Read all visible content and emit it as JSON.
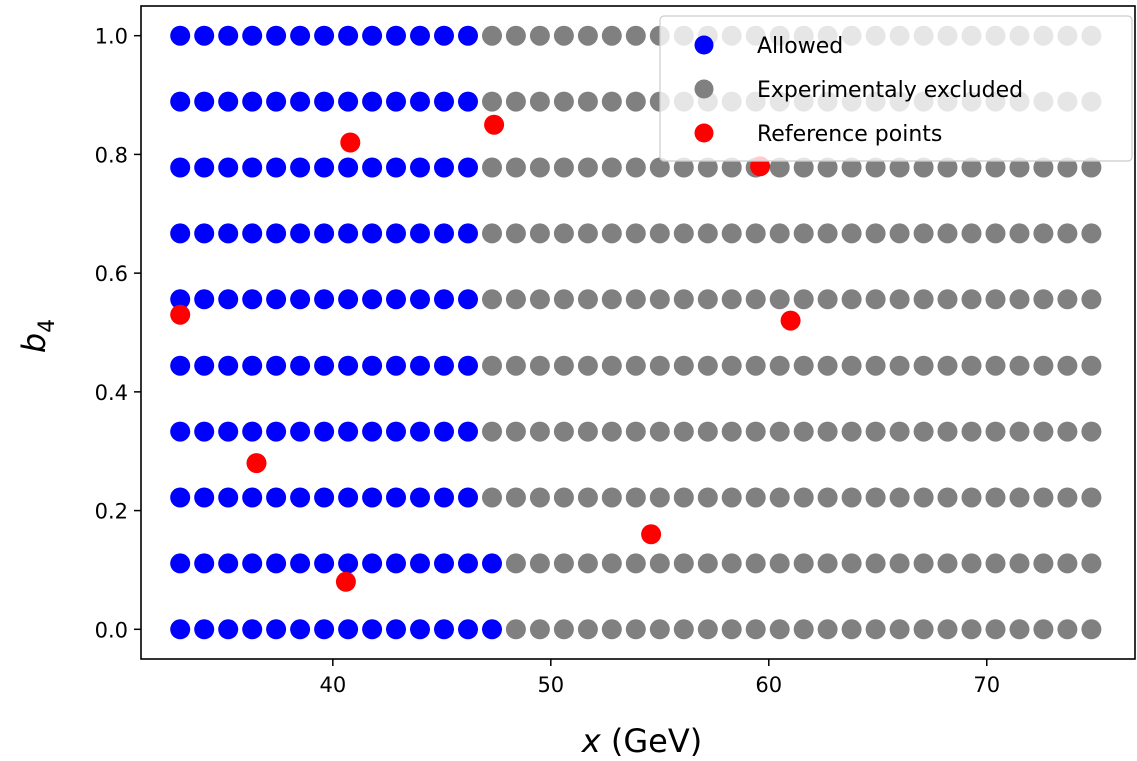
{
  "chart_data": {
    "type": "scatter",
    "xlabel_var": "x",
    "xlabel_unit": " (GeV)",
    "ylabel_var": "b",
    "ylabel_sub": "4",
    "xlim": [
      31.2,
      76.8
    ],
    "ylim": [
      -0.05,
      1.05
    ],
    "xticks": [
      40,
      50,
      60,
      70
    ],
    "yticks": [
      0.0,
      0.2,
      0.4,
      0.6,
      0.8,
      1.0
    ],
    "grid": false,
    "legend_position": "top-right",
    "grid_x": [
      33.0,
      34.1,
      35.2,
      36.3,
      37.4,
      38.5,
      39.6,
      40.7,
      41.8,
      42.9,
      44.0,
      45.1,
      46.2,
      47.3,
      48.4,
      49.5,
      50.6,
      51.7,
      52.8,
      53.9,
      55.0,
      56.1,
      57.2,
      58.3,
      59.4,
      60.5,
      61.6,
      62.7,
      63.8,
      64.9,
      66.0,
      67.1,
      68.2,
      69.3,
      70.4,
      71.5,
      72.6,
      73.7,
      74.8
    ],
    "grid_y": [
      0.0,
      0.111,
      0.222,
      0.333,
      0.444,
      0.556,
      0.667,
      0.778,
      0.889,
      1.0
    ],
    "allowed_max_x": [
      47.3,
      47.3,
      46.2,
      46.2,
      46.2,
      46.2,
      46.2,
      46.2,
      46.2,
      46.2
    ],
    "series": [
      {
        "name": "Allowed",
        "color": "#0000ff"
      },
      {
        "name": "Experimentaly excluded",
        "color": "#808080"
      },
      {
        "name": "Reference points",
        "color": "#ff0000",
        "points": [
          [
            33.0,
            0.53
          ],
          [
            36.5,
            0.28
          ],
          [
            40.6,
            0.08
          ],
          [
            40.8,
            0.82
          ],
          [
            47.4,
            0.85
          ],
          [
            54.6,
            0.16
          ],
          [
            59.6,
            0.78
          ],
          [
            61.0,
            0.52
          ]
        ]
      }
    ]
  }
}
